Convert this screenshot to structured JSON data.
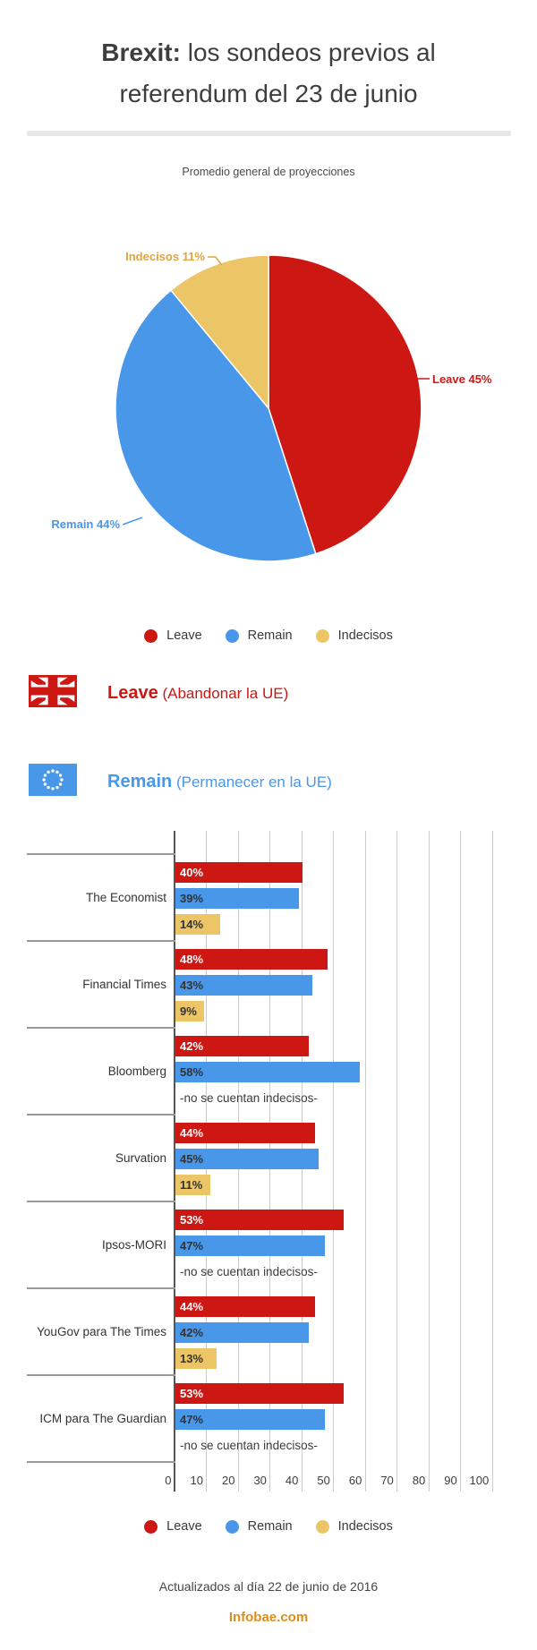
{
  "title": {
    "line1_bold": "Brexit:",
    "line1_rest": " los sondeos previos al",
    "line2": "referendum del 23 de junio"
  },
  "subtitle": "Promedio general de proyecciones",
  "colors": {
    "leave": "#cc1713",
    "remain": "#4997e9",
    "indecisos": "#ecc666",
    "indecisos_label": "#e2a43c",
    "grid": "#cccccc",
    "axis": "#555555",
    "separator": "#999999",
    "infobae": "#db8e1d"
  },
  "pie_labels": {
    "leave": "Leave 45%",
    "remain": "Remain 44%",
    "indecisos": "Indecisos 11%"
  },
  "legend": {
    "items": [
      {
        "label": "Leave"
      },
      {
        "label": "Remain"
      },
      {
        "label": "Indecisos"
      }
    ]
  },
  "headings": {
    "leave_bold": "Leave",
    "leave_rest": " (Abandonar la UE)",
    "remain_bold": "Remain",
    "remain_rest": " (Permanecer en la UE)"
  },
  "footer": {
    "updated": "Actualizados al día 22 de junio de 2016",
    "site": "Infobae.com"
  },
  "chart_data": [
    {
      "type": "pie",
      "title": "Promedio general de proyecciones",
      "labels": [
        "Leave",
        "Remain",
        "Indecisos"
      ],
      "values": [
        45,
        44,
        11
      ],
      "colors": [
        "#cc1713",
        "#4997e9",
        "#ecc666"
      ],
      "start_angle_deg": 0,
      "direction": "clockwise",
      "legend_position": "bottom"
    },
    {
      "type": "bar",
      "orientation": "horizontal",
      "categories": [
        "The Economist",
        "Financial Times",
        "Bloomberg",
        "Survation",
        "Ipsos-MORI",
        "YouGov para The Times",
        "ICM para The Guardian"
      ],
      "series": [
        {
          "name": "Leave",
          "values": [
            40,
            48,
            42,
            44,
            53,
            44,
            53
          ]
        },
        {
          "name": "Remain",
          "values": [
            39,
            43,
            58,
            45,
            47,
            42,
            47
          ]
        },
        {
          "name": "Indecisos",
          "values": [
            14,
            9,
            null,
            11,
            null,
            13,
            null
          ]
        }
      ],
      "no_data_note": "-no se cuentan indecisos-",
      "value_suffix": "%",
      "x_ticks": [
        0,
        10,
        20,
        30,
        40,
        50,
        60,
        70,
        80,
        90,
        100
      ],
      "xlim": [
        0,
        100
      ],
      "grid": true,
      "legend_position": "bottom"
    }
  ]
}
